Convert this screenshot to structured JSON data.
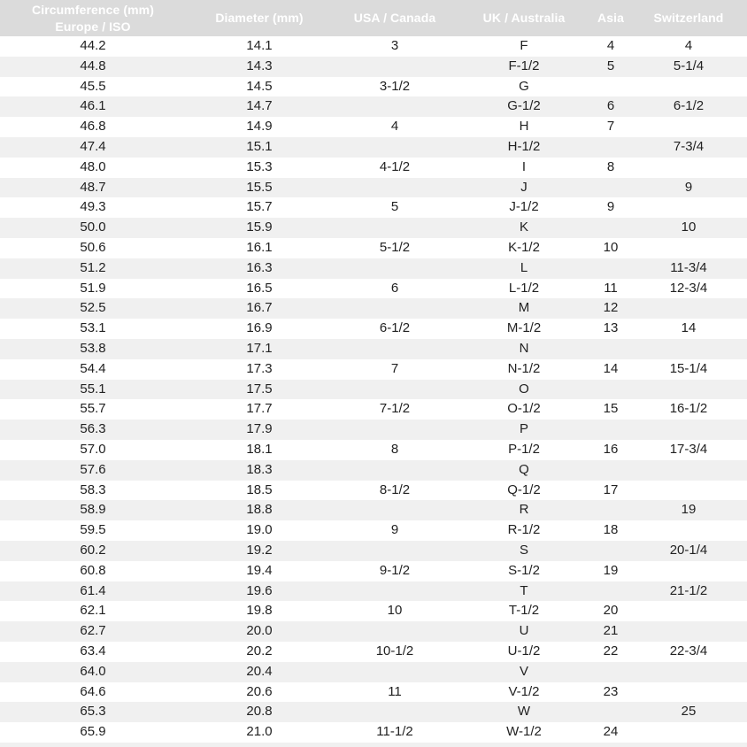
{
  "table": {
    "columns": [
      {
        "label": "Circumference (mm)",
        "sublabel": "Europe / ISO"
      },
      {
        "label": "Diameter (mm)",
        "sublabel": ""
      },
      {
        "label": "USA / Canada",
        "sublabel": ""
      },
      {
        "label": "UK / Australia",
        "sublabel": ""
      },
      {
        "label": "Asia",
        "sublabel": ""
      },
      {
        "label": "Switzerland",
        "sublabel": ""
      }
    ],
    "rows": [
      [
        "44.2",
        "14.1",
        "3",
        "F",
        "4",
        "4"
      ],
      [
        "44.8",
        "14.3",
        "",
        "F-1/2",
        "5",
        "5-1/4"
      ],
      [
        "45.5",
        "14.5",
        "3-1/2",
        "G",
        "",
        ""
      ],
      [
        "46.1",
        "14.7",
        "",
        "G-1/2",
        "6",
        "6-1/2"
      ],
      [
        "46.8",
        "14.9",
        "4",
        "H",
        "7",
        ""
      ],
      [
        "47.4",
        "15.1",
        "",
        "H-1/2",
        "",
        "7-3/4"
      ],
      [
        "48.0",
        "15.3",
        "4-1/2",
        "I",
        "8",
        ""
      ],
      [
        "48.7",
        "15.5",
        "",
        "J",
        "",
        "9"
      ],
      [
        "49.3",
        "15.7",
        "5",
        "J-1/2",
        "9",
        ""
      ],
      [
        "50.0",
        "15.9",
        "",
        "K",
        "",
        "10"
      ],
      [
        "50.6",
        "16.1",
        "5-1/2",
        "K-1/2",
        "10",
        ""
      ],
      [
        "51.2",
        "16.3",
        "",
        "L",
        "",
        "11-3/4"
      ],
      [
        "51.9",
        "16.5",
        "6",
        "L-1/2",
        "11",
        "12-3/4"
      ],
      [
        "52.5",
        "16.7",
        "",
        "M",
        "12",
        ""
      ],
      [
        "53.1",
        "16.9",
        "6-1/2",
        "M-1/2",
        "13",
        "14"
      ],
      [
        "53.8",
        "17.1",
        "",
        "N",
        "",
        ""
      ],
      [
        "54.4",
        "17.3",
        "7",
        "N-1/2",
        "14",
        "15-1/4"
      ],
      [
        "55.1",
        "17.5",
        "",
        "O",
        "",
        ""
      ],
      [
        "55.7",
        "17.7",
        "7-1/2",
        "O-1/2",
        "15",
        "16-1/2"
      ],
      [
        "56.3",
        "17.9",
        "",
        "P",
        "",
        ""
      ],
      [
        "57.0",
        "18.1",
        "8",
        "P-1/2",
        "16",
        "17-3/4"
      ],
      [
        "57.6",
        "18.3",
        "",
        "Q",
        "",
        ""
      ],
      [
        "58.3",
        "18.5",
        "8-1/2",
        "Q-1/2",
        "17",
        ""
      ],
      [
        "58.9",
        "18.8",
        "",
        "R",
        "",
        "19"
      ],
      [
        "59.5",
        "19.0",
        "9",
        "R-1/2",
        "18",
        ""
      ],
      [
        "60.2",
        "19.2",
        "",
        "S",
        "",
        "20-1/4"
      ],
      [
        "60.8",
        "19.4",
        "9-1/2",
        "S-1/2",
        "19",
        ""
      ],
      [
        "61.4",
        "19.6",
        "",
        "T",
        "",
        "21-1/2"
      ],
      [
        "62.1",
        "19.8",
        "10",
        "T-1/2",
        "20",
        ""
      ],
      [
        "62.7",
        "20.0",
        "",
        "U",
        "21",
        ""
      ],
      [
        "63.4",
        "20.2",
        "10-1/2",
        "U-1/2",
        "22",
        "22-3/4"
      ],
      [
        "64.0",
        "20.4",
        "",
        "V",
        "",
        ""
      ],
      [
        "64.6",
        "20.6",
        "11",
        "V-1/2",
        "23",
        ""
      ],
      [
        "65.3",
        "20.8",
        "",
        "W",
        "",
        "25"
      ],
      [
        "65.9",
        "21.0",
        "11-1/2",
        "W-1/2",
        "24",
        ""
      ]
    ]
  },
  "colors": {
    "header_bg": "#dbdbdb",
    "header_text": "#ffffff",
    "row_stripe": "#f0f0f0",
    "row_plain": "#ffffff",
    "cell_text": "#222222"
  }
}
